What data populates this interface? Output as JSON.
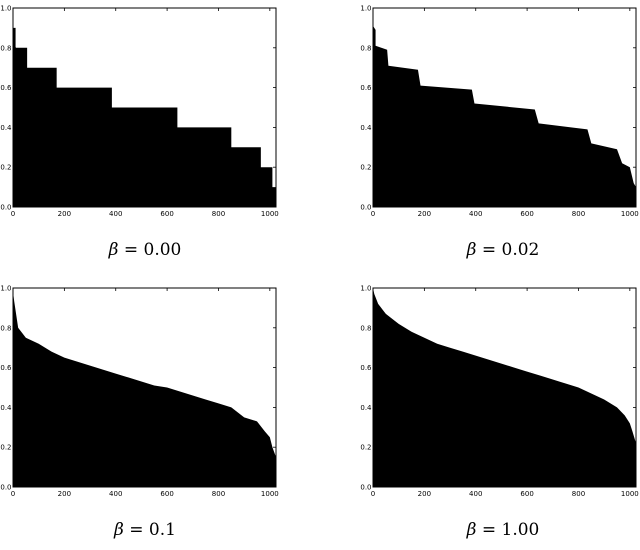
{
  "chart_data": [
    {
      "type": "area",
      "caption": {
        "symbol": "β",
        "text": "= 0.00"
      },
      "xlim": [
        0,
        1024
      ],
      "ylim": [
        0,
        1
      ],
      "xticks": [
        "0",
        "200",
        "400",
        "600",
        "800",
        "1000"
      ],
      "yticks": [
        "0.0",
        "0.2",
        "0.4",
        "0.6",
        "0.8",
        "1.0"
      ],
      "x": [
        0,
        10,
        10,
        55,
        55,
        170,
        170,
        385,
        385,
        640,
        640,
        850,
        850,
        965,
        965,
        1010,
        1010,
        1024
      ],
      "y": [
        0.9,
        0.9,
        0.8,
        0.8,
        0.7,
        0.7,
        0.6,
        0.6,
        0.5,
        0.5,
        0.4,
        0.4,
        0.3,
        0.3,
        0.2,
        0.2,
        0.1,
        0.1
      ]
    },
    {
      "type": "area",
      "caption": {
        "symbol": "β",
        "text": "= 0.02"
      },
      "xlim": [
        0,
        1024
      ],
      "ylim": [
        0,
        1
      ],
      "xticks": [
        "0",
        "200",
        "400",
        "600",
        "800",
        "1000"
      ],
      "yticks": [
        "0.0",
        "0.2",
        "0.4",
        "0.6",
        "0.8",
        "1.0"
      ],
      "x": [
        0,
        10,
        10,
        55,
        60,
        175,
        185,
        385,
        395,
        630,
        645,
        835,
        850,
        950,
        970,
        1000,
        1015,
        1024
      ],
      "y": [
        0.91,
        0.89,
        0.81,
        0.79,
        0.71,
        0.69,
        0.61,
        0.59,
        0.52,
        0.49,
        0.42,
        0.39,
        0.32,
        0.29,
        0.22,
        0.2,
        0.12,
        0.1
      ]
    },
    {
      "type": "area",
      "caption": {
        "symbol": "β",
        "text": "= 0.1"
      },
      "xlim": [
        0,
        1024
      ],
      "ylim": [
        0,
        1
      ],
      "xticks": [
        "0",
        "200",
        "400",
        "600",
        "800",
        "1000"
      ],
      "yticks": [
        "0.0",
        "0.2",
        "0.4",
        "0.6",
        "0.8",
        "1.0"
      ],
      "x": [
        0,
        5,
        20,
        50,
        100,
        150,
        200,
        250,
        300,
        350,
        400,
        450,
        500,
        550,
        600,
        650,
        700,
        750,
        800,
        850,
        880,
        900,
        950,
        980,
        1000,
        1010,
        1024
      ],
      "y": [
        0.98,
        0.93,
        0.8,
        0.75,
        0.72,
        0.68,
        0.65,
        0.63,
        0.61,
        0.59,
        0.57,
        0.55,
        0.53,
        0.51,
        0.5,
        0.48,
        0.46,
        0.44,
        0.42,
        0.4,
        0.37,
        0.35,
        0.33,
        0.28,
        0.25,
        0.2,
        0.15
      ]
    },
    {
      "type": "area",
      "caption": {
        "symbol": "β",
        "text": "= 1.00"
      },
      "xlim": [
        0,
        1024
      ],
      "ylim": [
        0,
        1
      ],
      "xticks": [
        "0",
        "200",
        "400",
        "600",
        "800",
        "1000"
      ],
      "yticks": [
        "0.0",
        "0.2",
        "0.4",
        "0.6",
        "0.8",
        "1.0"
      ],
      "x": [
        0,
        5,
        20,
        50,
        100,
        150,
        200,
        250,
        300,
        350,
        400,
        450,
        500,
        550,
        600,
        650,
        700,
        750,
        800,
        850,
        900,
        950,
        980,
        1000,
        1010,
        1024
      ],
      "y": [
        1.0,
        0.97,
        0.92,
        0.87,
        0.82,
        0.78,
        0.75,
        0.72,
        0.7,
        0.68,
        0.66,
        0.64,
        0.62,
        0.6,
        0.58,
        0.56,
        0.54,
        0.52,
        0.5,
        0.47,
        0.44,
        0.4,
        0.36,
        0.32,
        0.28,
        0.22
      ]
    }
  ]
}
